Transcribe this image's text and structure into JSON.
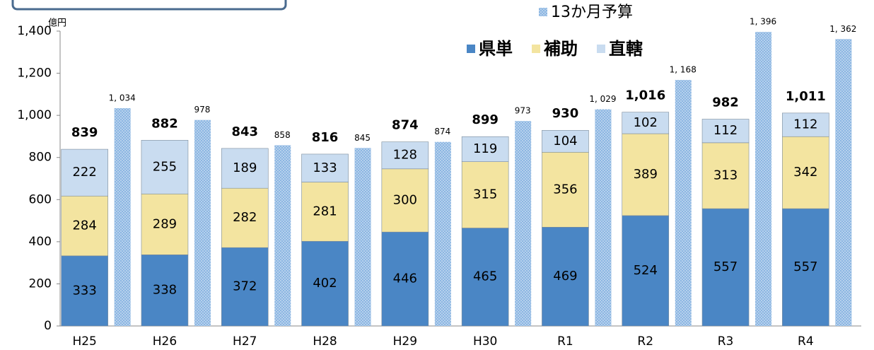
{
  "chart_data": {
    "type": "bar",
    "stacked": true,
    "unit_label": "億円",
    "categories": [
      "H25",
      "H26",
      "H27",
      "H28",
      "H29",
      "H30",
      "R1",
      "R2",
      "R3",
      "R4"
    ],
    "series": [
      {
        "name": "県単",
        "color": "#4a86c5",
        "values": [
          333,
          338,
          372,
          402,
          446,
          465,
          469,
          524,
          557,
          557
        ]
      },
      {
        "name": "補助",
        "color": "#f3e4a0",
        "values": [
          284,
          289,
          282,
          281,
          300,
          315,
          356,
          389,
          313,
          342
        ]
      },
      {
        "name": "直轄",
        "color": "#c9dcf0",
        "values": [
          222,
          255,
          189,
          133,
          128,
          119,
          104,
          102,
          112,
          112
        ]
      }
    ],
    "totals": [
      839,
      882,
      843,
      816,
      874,
      899,
      930,
      1016,
      982,
      1011
    ],
    "totals_labels": [
      "839",
      "882",
      "843",
      "816",
      "874",
      "899",
      "930",
      "1,016",
      "982",
      "1,011"
    ],
    "budget_series": {
      "name": "13か月予算",
      "color": "#8cb6e2",
      "values": [
        1034,
        978,
        858,
        845,
        874,
        973,
        1029,
        1168,
        1396,
        1362
      ],
      "value_labels": [
        "1, 034",
        "978",
        "858",
        "845",
        "874",
        "973",
        "1, 029",
        "1, 168",
        "1, 396",
        "1, 362"
      ]
    },
    "ylim": [
      0,
      1400
    ],
    "yticks": [
      0,
      200,
      400,
      600,
      800,
      {
        "value": 1000,
        "label": "1,000"
      },
      {
        "value": 1200,
        "label": "1,200"
      },
      {
        "value": 1400,
        "label": "1,400"
      }
    ],
    "grid": false
  }
}
